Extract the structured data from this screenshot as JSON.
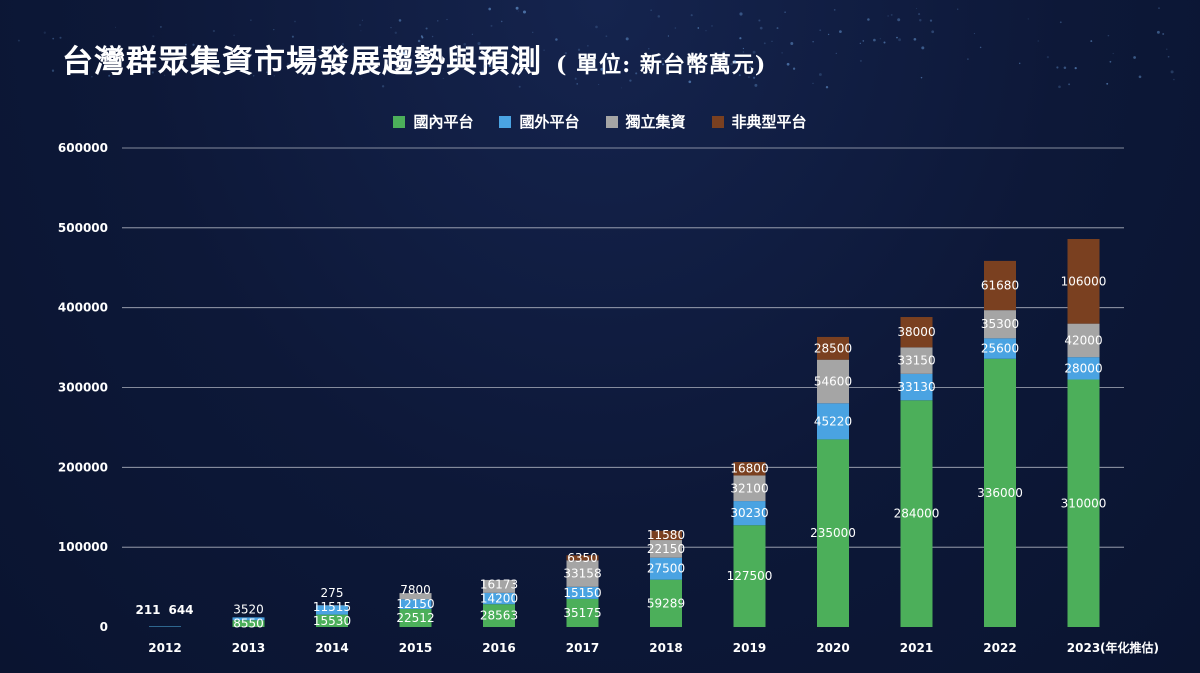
{
  "header": {
    "title": "台灣群眾集資市場發展趨勢與預測",
    "unit": "( 單位: 新台幣萬元)"
  },
  "colors": {
    "domestic": "#4caf5a",
    "foreign": "#4aa3e2",
    "independent": "#a5a5a5",
    "atypical": "#7a4020",
    "grid": "#c8ccd6",
    "text": "#ffffff"
  },
  "chart_data": {
    "type": "bar",
    "stacked": true,
    "title": "台灣群眾集資市場發展趨勢與預測",
    "categories": [
      "2012",
      "2013",
      "2014",
      "2015",
      "2016",
      "2017",
      "2018",
      "2019",
      "2020",
      "2021",
      "2022",
      "2023"
    ],
    "category_note": "(年化推估)",
    "series": [
      {
        "name": "國內平台",
        "values": [
          211,
          8550,
          15530,
          22512,
          28563,
          35175,
          59289,
          127500,
          235000,
          284000,
          336000,
          310000
        ]
      },
      {
        "name": "國外平台",
        "values": [
          644,
          3520,
          11515,
          12150,
          14200,
          15150,
          27500,
          30230,
          45220,
          33130,
          25600,
          28000
        ]
      },
      {
        "name": "獨立集資",
        "values": [
          null,
          null,
          275,
          7800,
          16173,
          33158,
          22150,
          32100,
          54600,
          33150,
          35300,
          42000
        ]
      },
      {
        "name": "非典型平台",
        "values": [
          null,
          null,
          null,
          null,
          null,
          6350,
          11580,
          16800,
          28500,
          38000,
          61680,
          106000
        ]
      }
    ],
    "yticks": [
      0,
      100000,
      200000,
      300000,
      400000,
      500000,
      600000
    ],
    "ylim": [
      0,
      600000
    ],
    "grid": true,
    "legend": "top-center"
  }
}
